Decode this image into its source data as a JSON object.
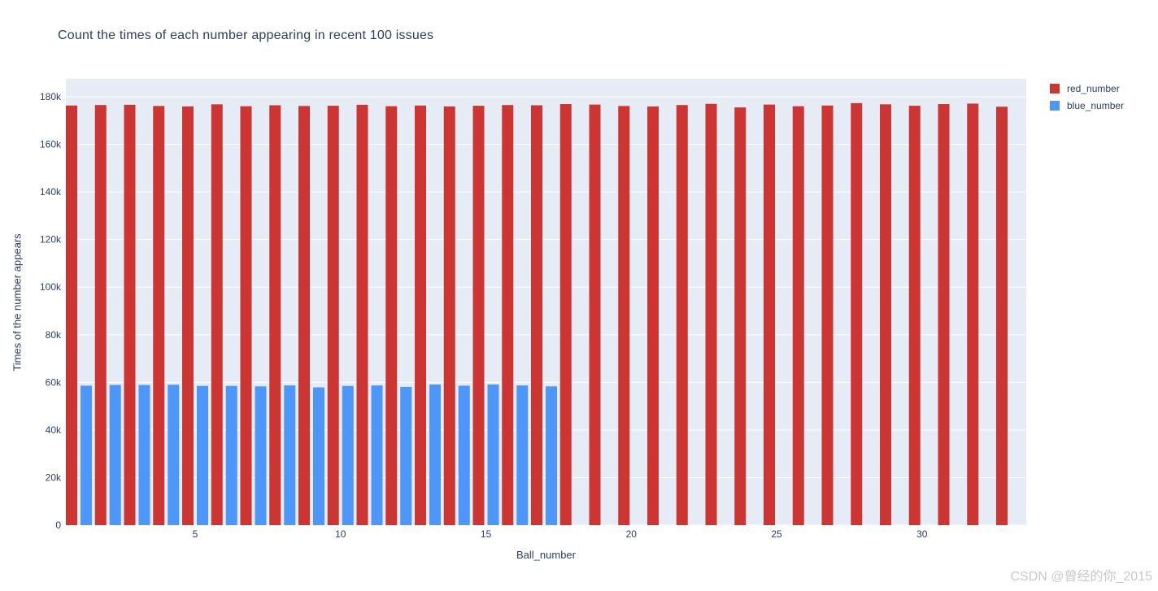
{
  "watermark": {
    "text": "CSDN @曾经的你_2015"
  },
  "chart_data": {
    "type": "bar",
    "title": "Count the times of each number appearing in recent 100 issues",
    "xlabel": "Ball_number",
    "ylabel": "Times of the number appears",
    "categories": [
      1,
      2,
      3,
      4,
      5,
      6,
      7,
      8,
      9,
      10,
      11,
      12,
      13,
      14,
      15,
      16,
      17,
      18,
      19,
      20,
      21,
      22,
      23,
      24,
      25,
      26,
      27,
      28,
      29,
      30,
      31,
      32,
      33
    ],
    "series": [
      {
        "name": "red_number",
        "color": "#cc3532",
        "values": [
          176300,
          176500,
          176600,
          176100,
          175900,
          176800,
          176000,
          176400,
          176100,
          176200,
          176600,
          176000,
          176300,
          175900,
          176200,
          176500,
          176400,
          176900,
          176700,
          176100,
          175900,
          176500,
          177000,
          175500,
          176700,
          176000,
          176300,
          177300,
          176800,
          176200,
          176900,
          177100,
          175800
        ]
      },
      {
        "name": "blue_number",
        "color": "#4d97fb",
        "values": [
          58600,
          58900,
          58900,
          59000,
          58500,
          58500,
          58300,
          58700,
          57900,
          58500,
          58700,
          58100,
          59100,
          58600,
          59100,
          58700,
          58300
        ]
      }
    ],
    "ylim": [
      0,
      187500
    ],
    "yticks": [
      0,
      20000,
      40000,
      60000,
      80000,
      100000,
      120000,
      140000,
      160000,
      180000
    ],
    "ytick_labels": [
      "0",
      "20k",
      "40k",
      "60k",
      "80k",
      "100k",
      "120k",
      "140k",
      "160k",
      "180k"
    ],
    "xticks": [
      5,
      10,
      15,
      20,
      25,
      30
    ],
    "xtick_labels": [
      "5",
      "10",
      "15",
      "20",
      "25",
      "30"
    ],
    "grid": true,
    "legend_position": "top-right",
    "plot_background": "#e5ecf6",
    "grid_color": "#ffffff",
    "text_color": "#2a3f5f"
  }
}
